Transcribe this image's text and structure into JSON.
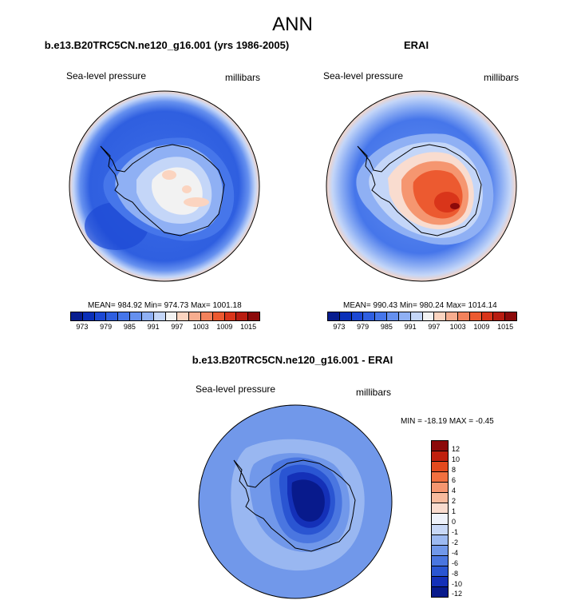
{
  "title": "ANN",
  "panels": [
    {
      "title": "b.e13.B20TRC5CN.ne120_g16.001 (yrs 1986-2005)",
      "left_label": "Sea-level pressure",
      "right_label": "millibars",
      "stats": "MEAN= 984.92  Min= 974.73  Max= 1001.18"
    },
    {
      "title": "ERAI",
      "left_label": "Sea-level pressure",
      "right_label": "millibars",
      "stats": "MEAN= 990.43  Min= 980.24  Max= 1014.14"
    },
    {
      "title": "b.e13.B20TRC5CN.ne120_g16.001 - ERAI",
      "left_label": "Sea-level pressure",
      "right_label": "millibars",
      "stats": "MIN = -18.19  MAX =  -0.45"
    }
  ],
  "colorbar_abs": {
    "colors": [
      "#081d8f",
      "#0a2fb8",
      "#1c48d4",
      "#2f5fe0",
      "#4676ea",
      "#6590ef",
      "#8fb0f4",
      "#c4d6f8",
      "#f2f2f2",
      "#fbd4c0",
      "#f7ad8f",
      "#f2825c",
      "#ec5a30",
      "#d9351a",
      "#b81c10",
      "#8c0a0a"
    ],
    "ticks": [
      "973",
      "979",
      "985",
      "991",
      "997",
      "1003",
      "1009",
      "1015"
    ]
  },
  "colorbar_diff": {
    "colors": [
      "#8c0a0a",
      "#c0200e",
      "#e44a1e",
      "#f27040",
      "#f59670",
      "#f7bb9e",
      "#f9dccf",
      "#eef2fb",
      "#c8d8f7",
      "#9dbaf2",
      "#7198ea",
      "#4a76e0",
      "#2a55d2",
      "#1430b8",
      "#081a8c"
    ],
    "ticks": [
      "12",
      "10",
      "8",
      "6",
      "4",
      "2",
      "1",
      "0",
      "-1",
      "-2",
      "-4",
      "-6",
      "-8",
      "-10",
      "-12"
    ]
  }
}
